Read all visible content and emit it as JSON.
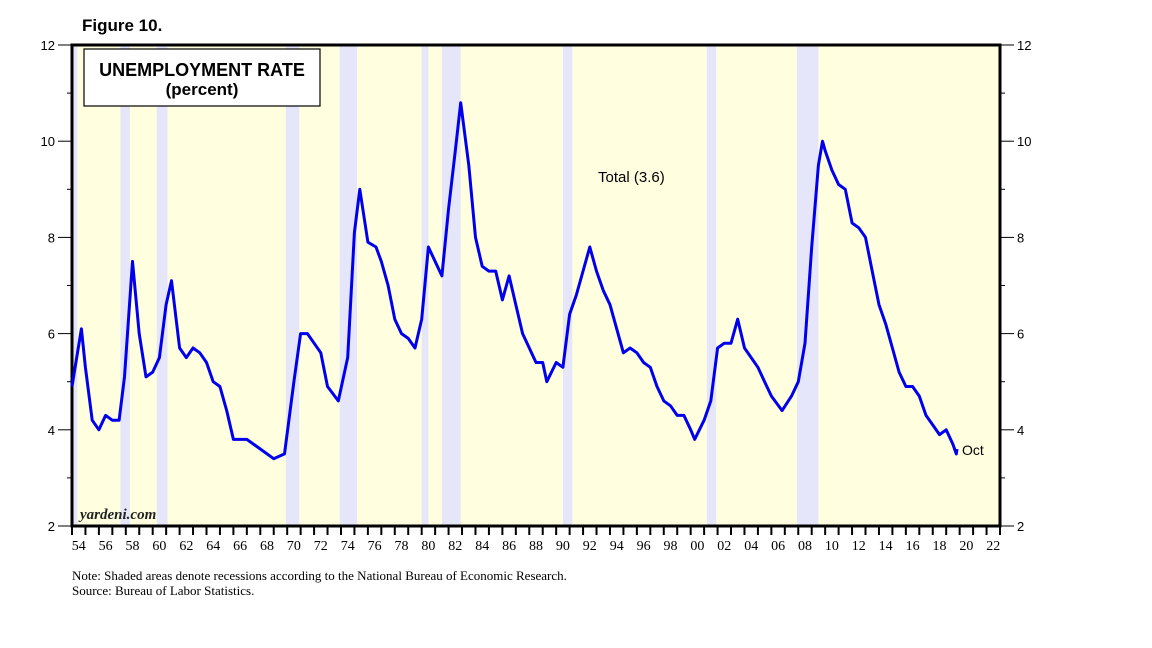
{
  "figure_label": "Figure 10.",
  "notes": {
    "line1": "Note: Shaded areas denote recessions according to the National Bureau of Economic Research.",
    "line2": "Source: Bureau of Labor Statistics."
  },
  "chart_data": {
    "type": "line",
    "title": "UNEMPLOYMENT RATE",
    "subtitle": "(percent)",
    "watermark": "yardeni.com",
    "series_label": "Total (3.6)",
    "end_label": "Oct",
    "ylim": [
      2,
      12
    ],
    "yticks": [
      2,
      4,
      6,
      8,
      10,
      12
    ],
    "xlim": [
      1954,
      2023
    ],
    "xtick_labels": [
      "54",
      "56",
      "58",
      "60",
      "62",
      "64",
      "66",
      "68",
      "70",
      "72",
      "74",
      "76",
      "78",
      "80",
      "82",
      "84",
      "86",
      "88",
      "90",
      "92",
      "94",
      "96",
      "98",
      "00",
      "02",
      "04",
      "06",
      "08",
      "10",
      "12",
      "14",
      "16",
      "18",
      "20",
      "22"
    ],
    "colors": {
      "line": "#0000ee",
      "background": "#ffffe0",
      "recession": "#e6e6fa"
    },
    "recessions": [
      [
        1953.5,
        1954.4
      ],
      [
        1957.6,
        1958.3
      ],
      [
        1960.3,
        1961.1
      ],
      [
        1969.9,
        1970.9
      ],
      [
        1973.9,
        1975.2
      ],
      [
        1980.0,
        1980.5
      ],
      [
        1981.5,
        1982.9
      ],
      [
        1990.5,
        1991.2
      ],
      [
        2001.2,
        2001.9
      ],
      [
        2007.9,
        2009.5
      ]
    ],
    "series": [
      {
        "x": [
          1954.0,
          1954.7,
          1955.0,
          1955.5,
          1956,
          1956.5,
          1957,
          1957.5,
          1957.9,
          1958.5,
          1959,
          1959.5,
          1960,
          1960.5,
          1961,
          1961.4,
          1962,
          1962.5,
          1963,
          1963.5,
          1964,
          1964.5,
          1965,
          1965.5,
          1966,
          1967,
          1968,
          1969,
          1969.8,
          1970.5,
          1971,
          1971.5,
          1972,
          1972.5,
          1973,
          1973.8,
          1974.5,
          1975.0,
          1975.4,
          1976,
          1976.6,
          1977,
          1977.5,
          1978,
          1978.5,
          1979,
          1979.5,
          1980.0,
          1980.5,
          1981,
          1981.5,
          1982,
          1982.5,
          1982.9,
          1983.5,
          1984,
          1984.5,
          1985,
          1985.5,
          1986,
          1986.5,
          1987,
          1987.5,
          1988,
          1988.5,
          1989,
          1989.3,
          1990,
          1990.5,
          1991,
          1991.5,
          1992.5,
          1993,
          1993.5,
          1994,
          1994.5,
          1995,
          1995.5,
          1996,
          1996.5,
          1997,
          1997.5,
          1998,
          1998.5,
          1999,
          1999.5,
          2000,
          2000.3,
          2001,
          2001.5,
          2002,
          2002.5,
          2003,
          2003.5,
          2004,
          2004.5,
          2005,
          2005.5,
          2006,
          2006.8,
          2007.5,
          2008,
          2008.5,
          2009,
          2009.5,
          2009.8,
          2010,
          2010.5,
          2011,
          2011.5,
          2012,
          2012.5,
          2013,
          2013.5,
          2014,
          2014.5,
          2015,
          2015.5,
          2016,
          2016.5,
          2017,
          2017.5,
          2018,
          2018.5,
          2019,
          2019.5,
          2019.75,
          2019.8
        ],
        "y": [
          4.9,
          6.1,
          5.3,
          4.2,
          4.0,
          4.3,
          4.2,
          4.2,
          5.1,
          7.5,
          6.0,
          5.1,
          5.2,
          5.5,
          6.6,
          7.1,
          5.7,
          5.5,
          5.7,
          5.6,
          5.4,
          5.0,
          4.9,
          4.4,
          3.8,
          3.8,
          3.6,
          3.4,
          3.5,
          5.0,
          6.0,
          6.0,
          5.8,
          5.6,
          4.9,
          4.6,
          5.5,
          8.1,
          9.0,
          7.9,
          7.8,
          7.5,
          7.0,
          6.3,
          6.0,
          5.9,
          5.7,
          6.3,
          7.8,
          7.5,
          7.2,
          8.6,
          9.8,
          10.8,
          9.5,
          8.0,
          7.4,
          7.3,
          7.3,
          6.7,
          7.2,
          6.6,
          6.0,
          5.7,
          5.4,
          5.4,
          5.0,
          5.4,
          5.3,
          6.4,
          6.8,
          7.8,
          7.3,
          6.9,
          6.6,
          6.1,
          5.6,
          5.7,
          5.6,
          5.4,
          5.3,
          4.9,
          4.6,
          4.5,
          4.3,
          4.3,
          4.0,
          3.8,
          4.2,
          4.6,
          5.7,
          5.8,
          5.8,
          6.3,
          5.7,
          5.5,
          5.3,
          5.0,
          4.7,
          4.4,
          4.7,
          5.0,
          5.8,
          7.8,
          9.5,
          10.0,
          9.8,
          9.4,
          9.1,
          9.0,
          8.3,
          8.2,
          8.0,
          7.3,
          6.6,
          6.2,
          5.7,
          5.2,
          4.9,
          4.9,
          4.7,
          4.3,
          4.1,
          3.9,
          4.0,
          3.7,
          3.5,
          3.6
        ]
      }
    ]
  }
}
